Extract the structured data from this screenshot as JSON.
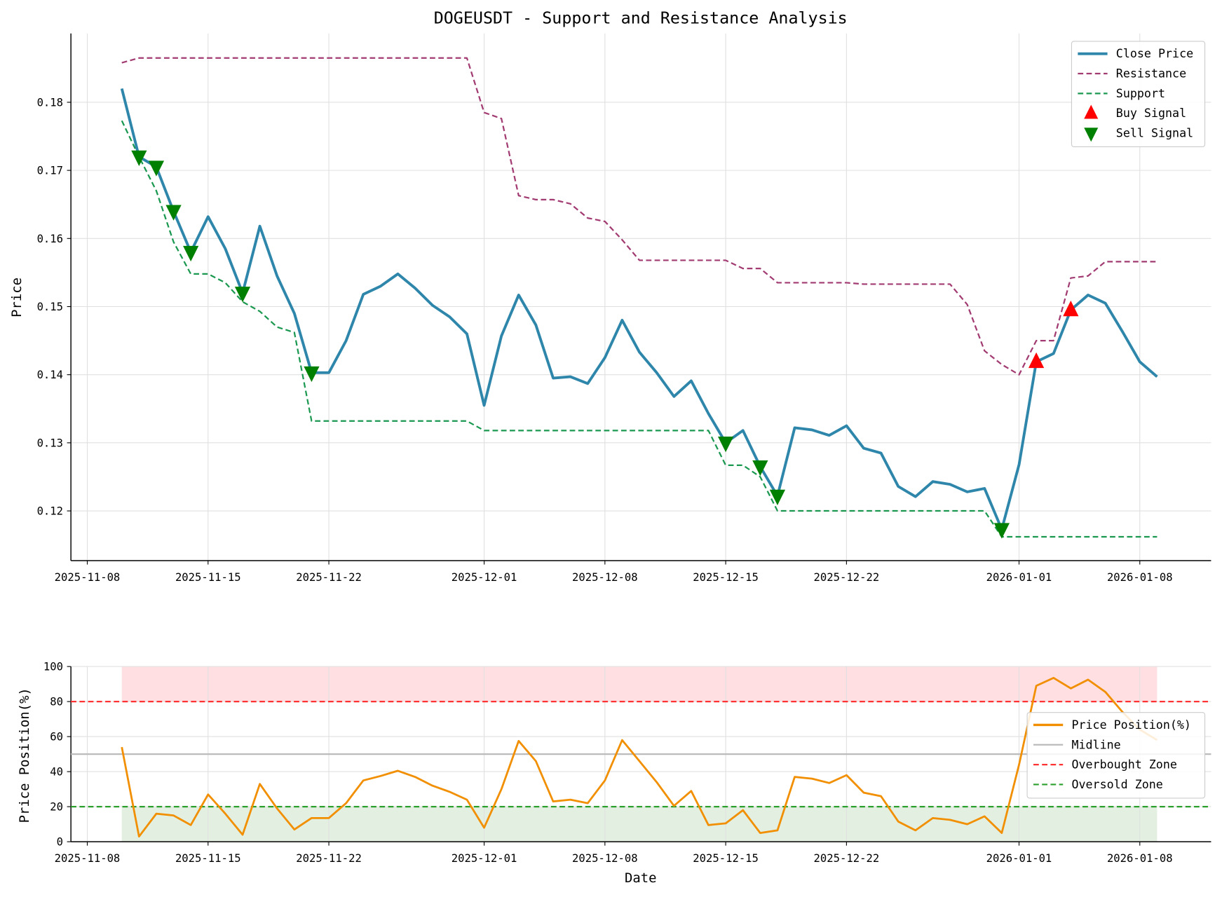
{
  "chart_data": [
    {
      "type": "line",
      "title": "DOGEUSDT - Support and Resistance Analysis",
      "xlabel": "",
      "ylabel": "Price",
      "start_date": "2025-11-10",
      "ylim": [
        0.1127,
        0.1901
      ],
      "yticks": [
        "0.12",
        "0.13",
        "0.14",
        "0.15",
        "0.16",
        "0.17",
        "0.18"
      ],
      "xtick_labels": [
        "2025-11-08",
        "2025-11-15",
        "2025-11-22",
        "2025-12-01",
        "2025-12-08",
        "2025-12-15",
        "2025-12-22",
        "2026-01-01",
        "2026-01-08"
      ],
      "xtick_day_offsets": [
        -2,
        5,
        12,
        21,
        28,
        35,
        42,
        52,
        59
      ],
      "grid": true,
      "legend_position": "top-right",
      "series": [
        {
          "name": "Close Price",
          "color": "#2e86ab",
          "style": "solid",
          "values": [
            0.182,
            0.172,
            0.1705,
            0.164,
            0.158,
            0.1632,
            0.1585,
            0.152,
            0.1618,
            0.1545,
            0.149,
            0.1403,
            0.1403,
            0.145,
            0.1518,
            0.153,
            0.1548,
            0.1527,
            0.1502,
            0.1485,
            0.146,
            0.1355,
            0.1457,
            0.1517,
            0.1473,
            0.1395,
            0.1397,
            0.1387,
            0.1425,
            0.148,
            0.1433,
            0.1403,
            0.1368,
            0.1391,
            0.1343,
            0.13,
            0.1318,
            0.1265,
            0.1222,
            0.1322,
            0.1319,
            0.1311,
            0.1325,
            0.1292,
            0.1285,
            0.1236,
            0.1221,
            0.1243,
            0.1239,
            0.1228,
            0.1233,
            0.1173,
            0.1268,
            0.1419,
            0.1431,
            0.1495,
            0.1517,
            0.1505,
            0.1463,
            0.1419,
            0.1397
          ]
        },
        {
          "name": "Resistance",
          "color": "#a23b72",
          "style": "dashed",
          "values": [
            0.1858,
            0.1865,
            0.1865,
            0.1865,
            0.1865,
            0.1865,
            0.1865,
            0.1865,
            0.1865,
            0.1865,
            0.1865,
            0.1865,
            0.1865,
            0.1865,
            0.1865,
            0.1865,
            0.1865,
            0.1865,
            0.1865,
            0.1865,
            0.1865,
            0.1785,
            0.1776,
            0.1663,
            0.1657,
            0.1657,
            0.1651,
            0.163,
            0.1625,
            0.1598,
            0.1568,
            0.1568,
            0.1568,
            0.1568,
            0.1568,
            0.1568,
            0.1556,
            0.1556,
            0.1535,
            0.1535,
            0.1535,
            0.1535,
            0.1535,
            0.1533,
            0.1533,
            0.1533,
            0.1533,
            0.1533,
            0.1533,
            0.1503,
            0.1435,
            0.1415,
            0.14,
            0.145,
            0.145,
            0.1542,
            0.1545,
            0.1566,
            0.1566,
            0.1566,
            0.1566
          ]
        },
        {
          "name": "Support",
          "color": "#1a9850",
          "style": "dashed",
          "values": [
            0.1773,
            0.172,
            0.167,
            0.1595,
            0.1548,
            0.1548,
            0.1535,
            0.1507,
            0.1493,
            0.147,
            0.1462,
            0.1332,
            0.1332,
            0.1332,
            0.1332,
            0.1332,
            0.1332,
            0.1332,
            0.1332,
            0.1332,
            0.1332,
            0.1318,
            0.1318,
            0.1318,
            0.1318,
            0.1318,
            0.1318,
            0.1318,
            0.1318,
            0.1318,
            0.1318,
            0.1318,
            0.1318,
            0.1318,
            0.1318,
            0.1267,
            0.1267,
            0.125,
            0.12,
            0.12,
            0.12,
            0.12,
            0.12,
            0.12,
            0.12,
            0.12,
            0.12,
            0.12,
            0.12,
            0.12,
            0.12,
            0.1162,
            0.1162,
            0.1162,
            0.1162,
            0.1162,
            0.1162,
            0.1162,
            0.1162,
            0.1162,
            0.1162
          ]
        }
      ],
      "markers": [
        {
          "name": "Buy Signal",
          "color": "#ff0000",
          "shape": "triangle-up",
          "indices": [
            53,
            55
          ]
        },
        {
          "name": "Sell Signal",
          "color": "#008000",
          "shape": "triangle-down",
          "indices": [
            1,
            2,
            3,
            4,
            7,
            11,
            35,
            37,
            38,
            51
          ]
        }
      ]
    },
    {
      "type": "line",
      "xlabel": "Date",
      "ylabel": "Price Position(%)",
      "ylim": [
        0,
        100
      ],
      "yticks": [
        "0",
        "20",
        "40",
        "60",
        "80",
        "100"
      ],
      "legend_position": "center-right",
      "series": [
        {
          "name": "Price Position(%)",
          "color": "#f18f01",
          "style": "solid",
          "values": [
            54,
            3,
            16,
            15,
            9.5,
            27,
            16,
            4,
            33,
            19,
            7,
            13.5,
            13.5,
            22,
            35,
            37.5,
            40.5,
            37,
            32,
            28.5,
            24,
            8,
            30,
            57.5,
            46,
            23,
            24,
            22,
            35,
            58,
            46,
            34,
            20.5,
            29,
            9.5,
            10.5,
            18,
            5,
            6.5,
            37,
            36,
            33.5,
            38,
            28,
            26,
            11.5,
            6.5,
            13.5,
            12.5,
            10,
            14.5,
            5,
            44,
            89,
            93.5,
            87.5,
            92.5,
            85.5,
            74,
            64,
            58
          ]
        },
        {
          "name": "Midline",
          "color": "#bbbbbb",
          "style": "solid",
          "value": 50
        },
        {
          "name": "Overbought Zone",
          "color": "#ff3333",
          "style": "dashed",
          "value": 80
        },
        {
          "name": "Oversold Zone",
          "color": "#2ca02c",
          "style": "dashed",
          "value": 20
        }
      ],
      "bands": [
        {
          "from": 80,
          "to": 100,
          "color": "#ffdfe2"
        },
        {
          "from": 0,
          "to": 20,
          "color": "#e3f0e1"
        }
      ]
    }
  ]
}
